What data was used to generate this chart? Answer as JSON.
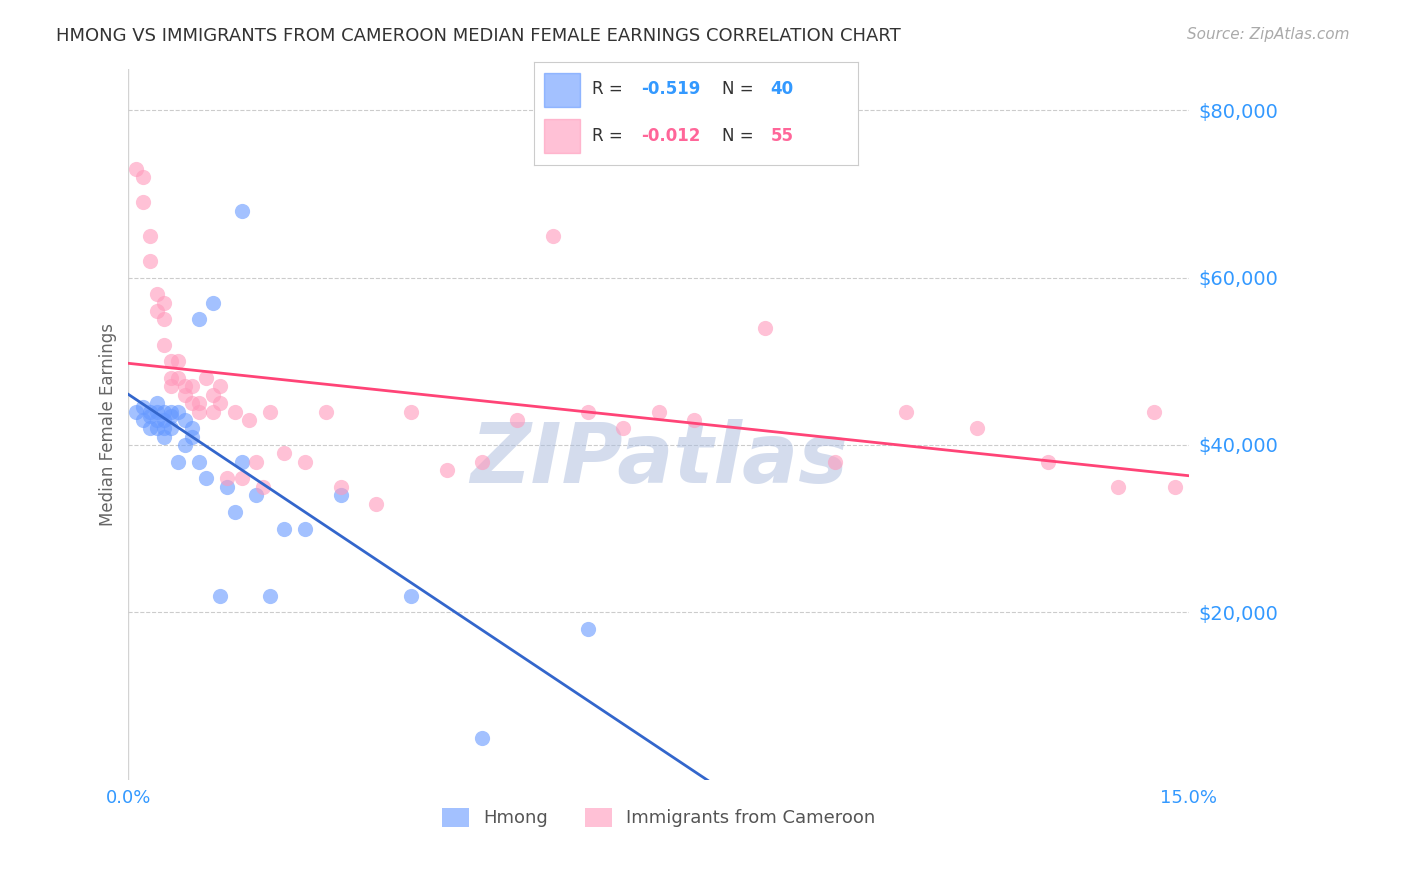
{
  "title": "HMONG VS IMMIGRANTS FROM CAMEROON MEDIAN FEMALE EARNINGS CORRELATION CHART",
  "source": "Source: ZipAtlas.com",
  "ylabel": "Median Female Earnings",
  "xlim": [
    0.0,
    0.15
  ],
  "ylim": [
    0,
    85000
  ],
  "yticks": [
    0,
    20000,
    40000,
    60000,
    80000
  ],
  "xtick_labels": [
    "0.0%",
    "15.0%"
  ],
  "legend_label1": "Hmong",
  "legend_label2": "Immigrants from Cameroon",
  "R1": "-0.519",
  "N1": "40",
  "R2": "-0.012",
  "N2": "55",
  "color_blue": "#6699ff",
  "color_pink": "#ff99bb",
  "color_blue_line": "#3366cc",
  "color_pink_line": "#ff4477",
  "color_blue_text": "#3399ff",
  "color_pink_text": "#ff6699",
  "color_axis_label": "#3399ff",
  "watermark_color": "#aabbdd",
  "background_color": "#ffffff",
  "grid_color": "#cccccc",
  "hmong_x": [
    0.001,
    0.002,
    0.002,
    0.003,
    0.003,
    0.003,
    0.004,
    0.004,
    0.004,
    0.004,
    0.005,
    0.005,
    0.005,
    0.005,
    0.006,
    0.006,
    0.006,
    0.007,
    0.007,
    0.008,
    0.008,
    0.009,
    0.009,
    0.01,
    0.01,
    0.011,
    0.012,
    0.013,
    0.014,
    0.015,
    0.016,
    0.016,
    0.018,
    0.02,
    0.022,
    0.025,
    0.03,
    0.04,
    0.05,
    0.065
  ],
  "hmong_y": [
    44000,
    43000,
    44500,
    42000,
    44000,
    43500,
    45000,
    44000,
    42000,
    43000,
    44000,
    43000,
    42000,
    41000,
    44000,
    43500,
    42000,
    44000,
    38000,
    43000,
    40000,
    42000,
    41000,
    55000,
    38000,
    36000,
    57000,
    22000,
    35000,
    32000,
    68000,
    38000,
    34000,
    22000,
    30000,
    30000,
    34000,
    22000,
    5000,
    18000
  ],
  "cameroon_x": [
    0.001,
    0.002,
    0.002,
    0.003,
    0.003,
    0.004,
    0.004,
    0.005,
    0.005,
    0.005,
    0.006,
    0.006,
    0.006,
    0.007,
    0.007,
    0.008,
    0.008,
    0.009,
    0.009,
    0.01,
    0.01,
    0.011,
    0.012,
    0.012,
    0.013,
    0.013,
    0.014,
    0.015,
    0.016,
    0.017,
    0.018,
    0.019,
    0.02,
    0.022,
    0.025,
    0.028,
    0.03,
    0.035,
    0.04,
    0.045,
    0.05,
    0.055,
    0.06,
    0.065,
    0.07,
    0.075,
    0.08,
    0.09,
    0.1,
    0.11,
    0.12,
    0.13,
    0.14,
    0.145,
    0.148
  ],
  "cameroon_y": [
    73000,
    69000,
    72000,
    62000,
    65000,
    56000,
    58000,
    57000,
    55000,
    52000,
    50000,
    48000,
    47000,
    50000,
    48000,
    47000,
    46000,
    47000,
    45000,
    44000,
    45000,
    48000,
    46000,
    44000,
    47000,
    45000,
    36000,
    44000,
    36000,
    43000,
    38000,
    35000,
    44000,
    39000,
    38000,
    44000,
    35000,
    33000,
    44000,
    37000,
    38000,
    43000,
    65000,
    44000,
    42000,
    44000,
    43000,
    54000,
    38000,
    44000,
    42000,
    38000,
    35000,
    44000,
    35000
  ]
}
